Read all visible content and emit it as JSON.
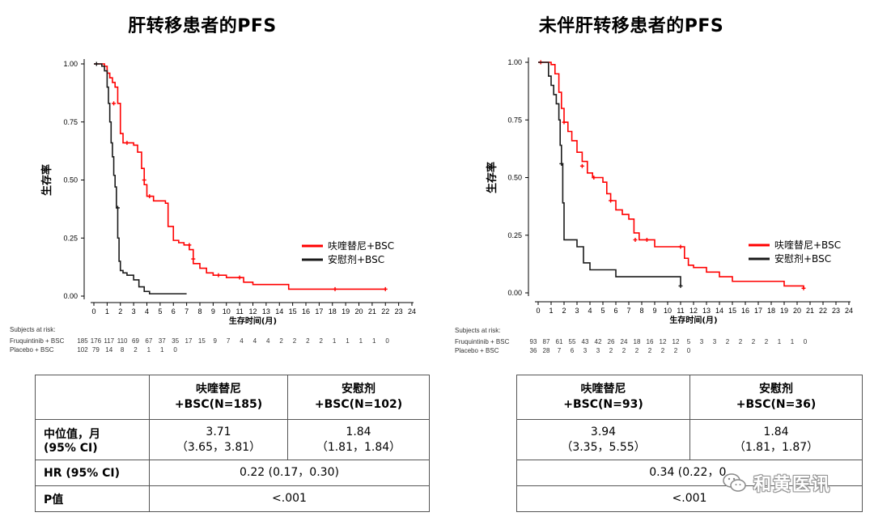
{
  "colors": {
    "treatment": "#ff0000",
    "placebo": "#1a1a1a",
    "table_border": "#555555"
  },
  "left": {
    "title": "肝转移患者的PFS",
    "chart_data": {
      "type": "line",
      "ylabel": "生存率",
      "xlabel": "生存时间(月)",
      "xlim": [
        0,
        24
      ],
      "ylim": [
        0,
        1
      ],
      "x_ticks": [
        "0",
        "1",
        "2",
        "3",
        "4",
        "5",
        "6",
        "7",
        "8",
        "9",
        "10",
        "11",
        "12",
        "13",
        "14",
        "15",
        "16",
        "17",
        "18",
        "19",
        "20",
        "21",
        "22",
        "23",
        "24"
      ],
      "y_ticks": [
        "0.00",
        "0.25",
        "0.50",
        "0.75",
        "1.00"
      ],
      "legend": [
        "呋喹替尼+BSC",
        "安慰剂+BSC"
      ],
      "series": [
        {
          "name": "呋喹替尼+BSC",
          "color": "#ff0000",
          "x": [
            0,
            0.4,
            0.8,
            1.0,
            1.2,
            1.4,
            1.6,
            1.8,
            2.0,
            2.2,
            2.6,
            3.0,
            3.3,
            3.6,
            3.8,
            4.0,
            4.5,
            5.0,
            5.4,
            5.6,
            6.0,
            6.4,
            6.8,
            7.0,
            7.2,
            7.5,
            8.0,
            8.5,
            9.0,
            9.5,
            10.0,
            11.0,
            11.3,
            12.0,
            13.0,
            14.0,
            14.7,
            16.0,
            18.0,
            20.0,
            22.0
          ],
          "y": [
            1.0,
            1.0,
            0.99,
            0.96,
            0.94,
            0.92,
            0.9,
            0.83,
            0.7,
            0.66,
            0.66,
            0.65,
            0.62,
            0.55,
            0.48,
            0.43,
            0.41,
            0.41,
            0.4,
            0.3,
            0.24,
            0.23,
            0.22,
            0.22,
            0.2,
            0.14,
            0.12,
            0.1,
            0.09,
            0.09,
            0.08,
            0.08,
            0.06,
            0.05,
            0.05,
            0.05,
            0.03,
            0.03,
            0.03,
            0.03,
            0.03
          ],
          "censor_x": [
            1.5,
            2.5,
            3.8,
            4.2,
            7.2,
            7.5,
            9.4,
            11.0,
            18.2,
            22.0
          ],
          "censor_y": [
            0.83,
            0.66,
            0.5,
            0.43,
            0.22,
            0.16,
            0.09,
            0.08,
            0.03,
            0.03
          ]
        },
        {
          "name": "安慰剂+BSC",
          "color": "#1a1a1a",
          "x": [
            0,
            0.3,
            0.6,
            0.8,
            1.0,
            1.1,
            1.2,
            1.3,
            1.4,
            1.5,
            1.6,
            1.7,
            1.8,
            1.9,
            2.0,
            2.2,
            2.5,
            3.0,
            3.4,
            3.8,
            4.2,
            5.0,
            6.0,
            7.0
          ],
          "y": [
            1.0,
            1.0,
            0.99,
            0.97,
            0.9,
            0.83,
            0.75,
            0.66,
            0.6,
            0.52,
            0.47,
            0.38,
            0.25,
            0.15,
            0.11,
            0.1,
            0.09,
            0.07,
            0.04,
            0.02,
            0.01,
            0.01,
            0.01,
            0.01
          ],
          "censor_x": [
            0.2,
            1.8
          ],
          "censor_y": [
            1.0,
            0.38
          ]
        }
      ]
    },
    "risk": {
      "title": "Subjects at risk:",
      "rows": [
        {
          "label": "Fruquintinib + BSC",
          "values": [
            "185",
            "176",
            "117",
            "110",
            "69",
            "67",
            "37",
            "35",
            "17",
            "15",
            "9",
            "7",
            "4",
            "4",
            "4",
            "2",
            "2",
            "2",
            "2",
            "1",
            "1",
            "1",
            "1",
            "0"
          ]
        },
        {
          "label": "Placebo + BSC",
          "values": [
            "102",
            "79",
            "14",
            "8",
            "2",
            "1",
            "1",
            "0"
          ]
        }
      ]
    },
    "table": {
      "col1": [
        "呋喹替尼",
        "+BSC(N=185)"
      ],
      "col2": [
        "安慰剂",
        "+BSC(N=102)"
      ],
      "median_label": [
        "中位值，月",
        "(95% CI)"
      ],
      "median_t": [
        "3.71",
        "（3.65，3.81）"
      ],
      "median_p": [
        "1.84",
        "（1.81，1.84）"
      ],
      "hr_label": "HR (95% CI)",
      "hr_value": "0.22 (0.17，0.30)",
      "p_label": "P值",
      "p_value": "<.001"
    }
  },
  "right": {
    "title": "未伴肝转移患者的PFS",
    "chart_data": {
      "type": "line",
      "ylabel": "生存率",
      "xlabel": "生存时间(月)",
      "xlim": [
        0,
        24
      ],
      "ylim": [
        0,
        1
      ],
      "x_ticks": [
        "0",
        "1",
        "2",
        "3",
        "4",
        "5",
        "6",
        "7",
        "8",
        "9",
        "10",
        "11",
        "12",
        "13",
        "14",
        "15",
        "16",
        "17",
        "18",
        "19",
        "20",
        "21",
        "22",
        "23",
        "24"
      ],
      "y_ticks": [
        "0.00",
        "0.25",
        "0.50",
        "0.75",
        "1.00"
      ],
      "legend": [
        "呋喹替尼+BSC",
        "安慰剂+BSC"
      ],
      "series": [
        {
          "name": "呋喹替尼+BSC",
          "color": "#ff0000",
          "x": [
            0,
            0.5,
            1.0,
            1.3,
            1.6,
            1.8,
            2.0,
            2.3,
            2.6,
            3.0,
            3.4,
            3.8,
            4.2,
            4.6,
            5.0,
            5.3,
            5.6,
            6.0,
            6.5,
            7.0,
            7.4,
            7.8,
            8.5,
            9.0,
            10.0,
            11.0,
            11.3,
            11.6,
            12.0,
            13.0,
            14.0,
            15.0,
            16.0,
            17.0,
            18.0,
            18.5,
            19.0,
            20.5
          ],
          "y": [
            1.0,
            1.0,
            0.99,
            0.95,
            0.87,
            0.8,
            0.74,
            0.7,
            0.66,
            0.61,
            0.57,
            0.52,
            0.5,
            0.5,
            0.48,
            0.43,
            0.4,
            0.36,
            0.34,
            0.32,
            0.26,
            0.23,
            0.23,
            0.2,
            0.2,
            0.2,
            0.15,
            0.12,
            0.11,
            0.09,
            0.07,
            0.05,
            0.05,
            0.05,
            0.05,
            0.05,
            0.03,
            0.02
          ],
          "censor_x": [
            0.2,
            2.0,
            3.4,
            4.3,
            5.6,
            7.5,
            8.4,
            11.0,
            20.5
          ],
          "censor_y": [
            1.0,
            0.74,
            0.55,
            0.5,
            0.4,
            0.23,
            0.23,
            0.2,
            0.02
          ]
        },
        {
          "name": "安慰剂+BSC",
          "color": "#1a1a1a",
          "x": [
            0,
            0.4,
            0.8,
            1.0,
            1.2,
            1.4,
            1.6,
            1.7,
            1.8,
            1.9,
            2.0,
            2.5,
            3.0,
            3.5,
            4.0,
            5.0,
            6.0,
            7.0,
            8.0,
            9.0,
            10.0,
            11.0
          ],
          "y": [
            1.0,
            1.0,
            0.94,
            0.9,
            0.86,
            0.82,
            0.75,
            0.64,
            0.56,
            0.39,
            0.23,
            0.23,
            0.2,
            0.13,
            0.1,
            0.1,
            0.07,
            0.07,
            0.07,
            0.07,
            0.07,
            0.03
          ],
          "censor_x": [
            1.8,
            11.0
          ],
          "censor_y": [
            0.56,
            0.03
          ]
        }
      ]
    },
    "risk": {
      "title": "Subjects at risk:",
      "rows": [
        {
          "label": "Fruquintinib + BSC",
          "values": [
            "93",
            "87",
            "61",
            "55",
            "43",
            "42",
            "26",
            "24",
            "18",
            "16",
            "12",
            "12",
            "5",
            "3",
            "3",
            "2",
            "2",
            "2",
            "2",
            "1",
            "1",
            "0"
          ]
        },
        {
          "label": "Placebo + BSC",
          "values": [
            "36",
            "28",
            "7",
            "6",
            "3",
            "3",
            "2",
            "2",
            "2",
            "2",
            "2",
            "2",
            "0"
          ]
        }
      ]
    },
    "table": {
      "col1": [
        "呋喹替尼",
        "+BSC(N=93)"
      ],
      "col2": [
        "安慰剂",
        "+BSC(N=36)"
      ],
      "median_t": [
        "3.94",
        "（3.35，5.55）"
      ],
      "median_p": [
        "1.84",
        "（1.81，1.87）"
      ],
      "hr_value": "0.34 (0.22，0.",
      "p_value": "<.001"
    }
  },
  "watermark": {
    "text": "和黄医讯",
    "icon": "wechat-icon"
  }
}
